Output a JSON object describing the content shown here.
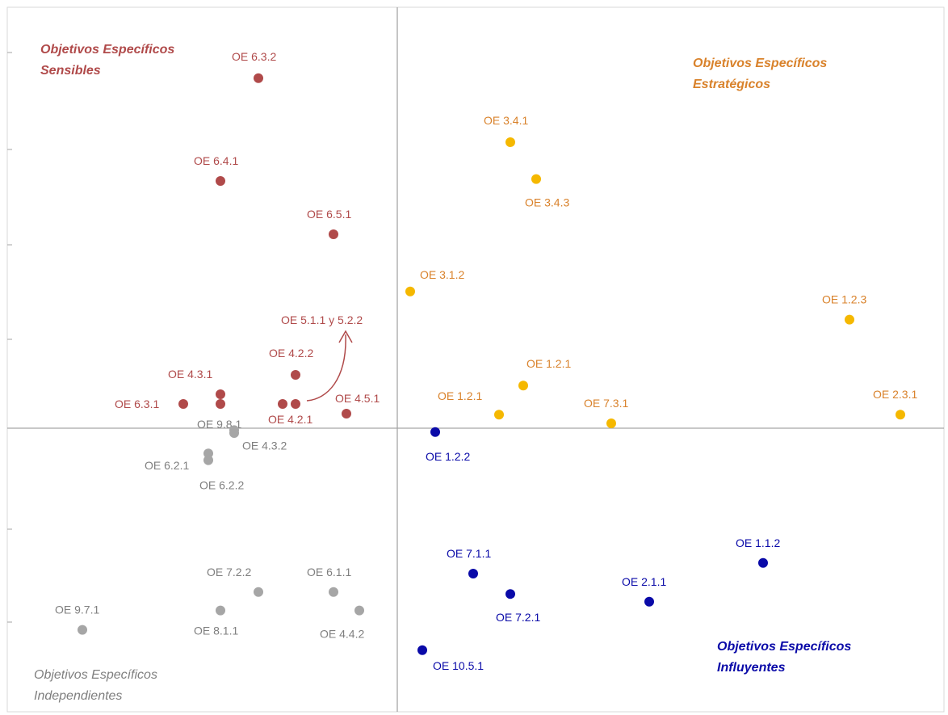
{
  "chart_data": {
    "type": "scatter",
    "title": "",
    "xlabel": "",
    "ylabel": "",
    "grid": false,
    "colors": {
      "sensibles": "#B04A4A",
      "estrategicos": "#F5B800",
      "estrategicos_label": "#D9822B",
      "independientes": "#A6A6A6",
      "independientes_label": "#7F7F7F",
      "influyentes": "#0A0AA8",
      "axis": "#A6A6A6",
      "annotation_arrow": "#B04A4A"
    },
    "quadrants": [
      {
        "key": "sensibles",
        "lines": [
          "Objetivos Específicos",
          "Sensibles"
        ]
      },
      {
        "key": "estrategicos",
        "lines": [
          "Objetivos Específicos",
          "Estratégicos"
        ]
      },
      {
        "key": "independientes",
        "lines": [
          "Objetivos Específicos",
          "Independientes"
        ]
      },
      {
        "key": "influyentes",
        "lines": [
          "Objetivos Específicos",
          "Influyentes"
        ]
      }
    ],
    "series": [
      {
        "name": "Sensibles",
        "key": "sensibles",
        "points": [
          {
            "label": "OE 6.3.2",
            "x": -1.72,
            "y": 3.61
          },
          {
            "label": "OE 6.4.1",
            "x": -2.19,
            "y": 2.55
          },
          {
            "label": "OE 6.5.1",
            "x": -0.79,
            "y": 2.0
          },
          {
            "label": "OE 4.2.2",
            "x": -1.26,
            "y": 0.55
          },
          {
            "label": "OE 4.3.1",
            "x": -2.19,
            "y": 0.35
          },
          {
            "label": "",
            "x": -2.19,
            "y": 0.25
          },
          {
            "label": "OE 6.3.1",
            "x": -2.65,
            "y": 0.25
          },
          {
            "label": "",
            "x": -1.42,
            "y": 0.25
          },
          {
            "label": "OE 4.2.1",
            "x": -1.26,
            "y": 0.25
          },
          {
            "label": "OE 4.5.1",
            "x": -0.63,
            "y": 0.15
          }
        ]
      },
      {
        "name": "Estratégicos",
        "key": "estrategicos",
        "points": [
          {
            "label": "OE 3.4.1",
            "x": 1.4,
            "y": 2.95
          },
          {
            "label": "OE 3.4.3",
            "x": 1.72,
            "y": 2.57
          },
          {
            "label": "OE 3.1.2",
            "x": 0.16,
            "y": 1.41
          },
          {
            "label": "OE 1.2.3",
            "x": 5.6,
            "y": 1.12
          },
          {
            "label": "OE 1.2.1",
            "x": 1.56,
            "y": 0.44
          },
          {
            "label": "OE 1.2.1",
            "x": 1.26,
            "y": 0.14
          },
          {
            "label": "OE 7.3.1",
            "x": 2.65,
            "y": 0.05
          },
          {
            "label": "OE 2.3.1",
            "x": 6.23,
            "y": 0.14
          }
        ]
      },
      {
        "name": "Independientes",
        "key": "independientes",
        "points": [
          {
            "label": "OE 9.8.1",
            "x": -2.02,
            "y": -0.05
          },
          {
            "label": "OE 4.3.2",
            "x": -2.02,
            "y": -0.02
          },
          {
            "label": "OE 6.2.1",
            "x": -2.34,
            "y": -0.26
          },
          {
            "label": "OE 6.2.2",
            "x": -2.34,
            "y": -0.33
          },
          {
            "label": "OE 7.2.2",
            "x": -1.72,
            "y": -1.69
          },
          {
            "label": "OE 6.1.1",
            "x": -0.79,
            "y": -1.69
          },
          {
            "label": "OE 8.1.1",
            "x": -2.19,
            "y": -1.88
          },
          {
            "label": "OE 4.4.2",
            "x": -0.47,
            "y": -1.88
          },
          {
            "label": "OE 9.7.1",
            "x": -3.9,
            "y": -2.08
          }
        ]
      },
      {
        "name": "Influyentes",
        "key": "influyentes",
        "points": [
          {
            "label": "OE 1.2.2",
            "x": 0.47,
            "y": -0.04
          },
          {
            "label": "OE 1.1.2",
            "x": 4.53,
            "y": -1.39
          },
          {
            "label": "OE 7.1.1",
            "x": 0.94,
            "y": -1.5
          },
          {
            "label": "OE 7.2.1",
            "x": 1.4,
            "y": -1.71
          },
          {
            "label": "OE 2.1.1",
            "x": 3.12,
            "y": -1.79
          },
          {
            "label": "OE 10.5.1",
            "x": 0.31,
            "y": -2.29
          }
        ]
      }
    ],
    "annotations": [
      {
        "text": "OE 5.1.1  y 5.2.2"
      }
    ]
  }
}
